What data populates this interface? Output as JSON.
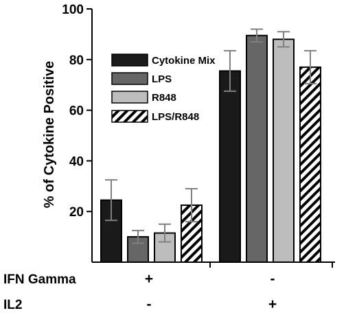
{
  "chart_data": {
    "type": "bar",
    "ylabel": "% of Cytokine Positive",
    "ylim": [
      0,
      100
    ],
    "yticks": [
      20,
      40,
      60,
      80,
      100
    ],
    "groups": [
      "IFN Gamma + / IL2 -",
      "IFN Gamma - / IL2 +"
    ],
    "series": [
      {
        "name": "Cytokine Mix",
        "values": [
          24.5,
          75.5
        ],
        "errors": [
          8,
          8
        ],
        "color": "#1a1a1a",
        "pattern": "solid"
      },
      {
        "name": "LPS",
        "values": [
          10,
          89.5
        ],
        "errors": [
          2.5,
          2.5
        ],
        "color": "#666666",
        "pattern": "solid"
      },
      {
        "name": "R848",
        "values": [
          11.5,
          88
        ],
        "errors": [
          3.5,
          3
        ],
        "color": "#bdbdbd",
        "pattern": "solid"
      },
      {
        "name": "LPS/R848",
        "values": [
          22.5,
          77
        ],
        "errors": [
          6.5,
          6.5
        ],
        "color": "#ffffff",
        "pattern": "hatch"
      }
    ],
    "error_bar_color": "#808080",
    "conditions": [
      {
        "label": "IFN Gamma",
        "values": [
          "+",
          "-"
        ]
      },
      {
        "label": "IL2",
        "values": [
          "-",
          "+"
        ]
      }
    ],
    "legend_position": "upper-left-center"
  }
}
